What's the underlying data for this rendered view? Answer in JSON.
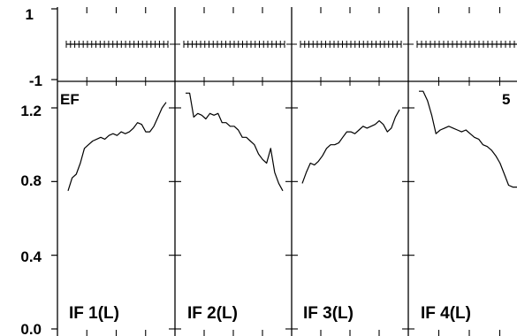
{
  "chart_data": {
    "type": "line",
    "corner_label": "EF",
    "corner_label_right": "5",
    "top_strip": {
      "ylim": [
        -1,
        1
      ],
      "tick_labels": [
        "1",
        "-1"
      ],
      "value": 0
    },
    "main": {
      "ylim": [
        0,
        1.3
      ],
      "tick_labels": [
        "1.2",
        "0.8",
        "0.4",
        "0.0"
      ],
      "tick_values": [
        1.2,
        0.8,
        0.4,
        0.0
      ]
    },
    "panels": [
      {
        "label": "IF 1(L)",
        "x": [
          0,
          1,
          2,
          3,
          4,
          5,
          6,
          7,
          8,
          9,
          10,
          11,
          12,
          13,
          14,
          15,
          16,
          17,
          18,
          19,
          20,
          21,
          22,
          23,
          24
        ],
        "values": [
          0.75,
          0.82,
          0.84,
          0.9,
          0.98,
          1.0,
          1.02,
          1.03,
          1.04,
          1.03,
          1.05,
          1.06,
          1.05,
          1.07,
          1.06,
          1.07,
          1.09,
          1.12,
          1.11,
          1.07,
          1.07,
          1.1,
          1.15,
          1.2,
          1.23
        ]
      },
      {
        "label": "IF 2(L)",
        "x": [
          0,
          1,
          2,
          3,
          4,
          5,
          6,
          7,
          8,
          9,
          10,
          11,
          12,
          13,
          14,
          15,
          16,
          17,
          18,
          19,
          20,
          21,
          22,
          23,
          24
        ],
        "values": [
          1.28,
          1.28,
          1.15,
          1.17,
          1.16,
          1.14,
          1.17,
          1.16,
          1.17,
          1.12,
          1.12,
          1.1,
          1.1,
          1.08,
          1.04,
          1.04,
          1.02,
          1.0,
          0.95,
          0.92,
          0.9,
          0.98,
          0.85,
          0.79,
          0.75
        ]
      },
      {
        "label": "IF 3(L)",
        "x": [
          0,
          1,
          2,
          3,
          4,
          5,
          6,
          7,
          8,
          9,
          10,
          11,
          12,
          13,
          14,
          15,
          16,
          17,
          18,
          19,
          20,
          21,
          22,
          23,
          24
        ],
        "values": [
          0.79,
          0.85,
          0.9,
          0.89,
          0.91,
          0.94,
          0.98,
          1.0,
          1.0,
          1.01,
          1.04,
          1.07,
          1.07,
          1.06,
          1.08,
          1.1,
          1.09,
          1.1,
          1.11,
          1.13,
          1.11,
          1.07,
          1.09,
          1.15,
          1.19
        ]
      },
      {
        "label": "IF 4(L)",
        "x": [
          0,
          1,
          2,
          3,
          4,
          5,
          6,
          7,
          8,
          9,
          10,
          11,
          12,
          13,
          14,
          15,
          16,
          17,
          18,
          19,
          20,
          21,
          22,
          23,
          24
        ],
        "values": [
          1.29,
          1.29,
          1.24,
          1.16,
          1.06,
          1.08,
          1.09,
          1.1,
          1.09,
          1.08,
          1.07,
          1.08,
          1.06,
          1.04,
          1.03,
          1.0,
          0.99,
          0.97,
          0.94,
          0.9,
          0.84,
          0.78,
          0.77,
          0.77,
          0.77
        ]
      }
    ]
  }
}
